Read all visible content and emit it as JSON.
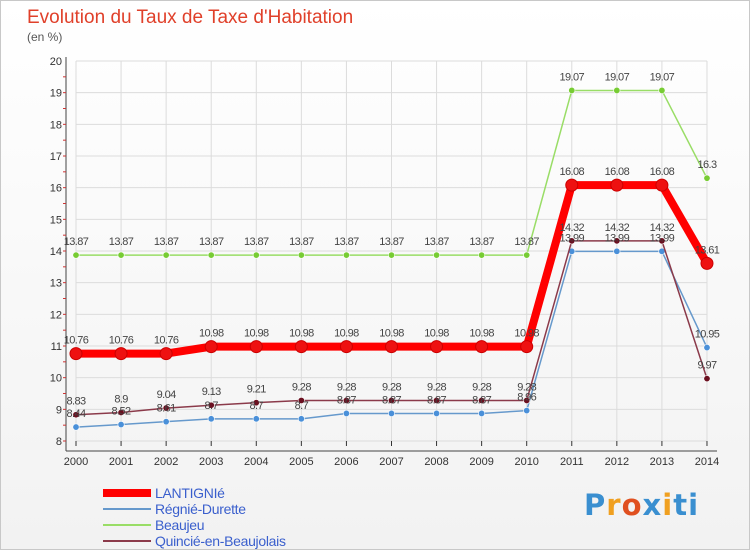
{
  "header": {
    "title": "Evolution du Taux de Taxe d'Habitation",
    "subtitle": "(en %)"
  },
  "chart_data": {
    "type": "line",
    "title": "Evolution du Taux de Taxe d'Habitation",
    "subtitle": "(en %)",
    "xlabel": "",
    "ylabel": "",
    "x": [
      "2000",
      "2001",
      "2002",
      "2003",
      "2004",
      "2005",
      "2006",
      "2007",
      "2008",
      "2009",
      "2010",
      "2011",
      "2012",
      "2013",
      "2014"
    ],
    "ylim": [
      8,
      20
    ],
    "yticks": [
      "8",
      "9",
      "10",
      "11",
      "12",
      "13",
      "14",
      "15",
      "16",
      "17",
      "18",
      "19",
      "20"
    ],
    "grid": true,
    "legend_position": "bottom-left",
    "series": [
      {
        "name": "LANTIGNIé",
        "color": "#ff0000",
        "marker_color": "#ee1111",
        "values": [
          10.76,
          10.76,
          10.76,
          10.98,
          10.98,
          10.98,
          10.98,
          10.98,
          10.98,
          10.98,
          10.98,
          16.08,
          16.08,
          16.08,
          13.61
        ],
        "labels": [
          "10.76",
          "10.76",
          "10.76",
          "10.98",
          "10.98",
          "10.98",
          "10.98",
          "10.98",
          "10.98",
          "10.98",
          "10.98",
          "16.08",
          "16.08",
          "16.08",
          "13.61"
        ]
      },
      {
        "name": "Régnié-Durette",
        "color": "#6699cc",
        "marker_color": "#4a90d9",
        "values": [
          8.44,
          8.52,
          8.61,
          8.7,
          8.7,
          8.7,
          8.87,
          8.87,
          8.87,
          8.87,
          8.96,
          13.99,
          13.99,
          13.99,
          10.95
        ],
        "labels": [
          "8.44",
          "8.52",
          "8.61",
          "8.7",
          "8.7",
          "8.7",
          "8.87",
          "8.87",
          "8.87",
          "8.87",
          "8.96",
          "13.99",
          "13.99",
          "13.99",
          "10.95"
        ]
      },
      {
        "name": "Beaujeu",
        "color": "#99dd66",
        "marker_color": "#77cc33",
        "values": [
          13.87,
          13.87,
          13.87,
          13.87,
          13.87,
          13.87,
          13.87,
          13.87,
          13.87,
          13.87,
          13.87,
          19.07,
          19.07,
          19.07,
          16.3
        ],
        "labels": [
          "13.87",
          "13.87",
          "13.87",
          "13.87",
          "13.87",
          "13.87",
          "13.87",
          "13.87",
          "13.87",
          "13.87",
          "13.87",
          "19.07",
          "19.07",
          "19.07",
          "16.3"
        ]
      },
      {
        "name": "Quincié-en-Beaujolais",
        "color": "#8b3a4a",
        "marker_color": "#6b1020",
        "values": [
          8.83,
          8.9,
          9.04,
          9.13,
          9.21,
          9.28,
          9.28,
          9.28,
          9.28,
          9.28,
          9.28,
          14.32,
          14.32,
          14.32,
          9.97
        ],
        "labels": [
          "8.83",
          "8.9",
          "9.04",
          "9.13",
          "9.21",
          "9.28",
          "9.28",
          "9.28",
          "9.28",
          "9.28",
          "9.28",
          "14.32",
          "14.32",
          "14.32",
          "9.97"
        ]
      }
    ]
  },
  "legend": {
    "items": [
      {
        "label": "LANTIGNIé",
        "color": "#ff0000"
      },
      {
        "label": "Régnié-Durette",
        "color": "#6699cc"
      },
      {
        "label": "Beaujeu",
        "color": "#99dd66"
      },
      {
        "label": "Quincié-en-Beaujolais",
        "color": "#8b3a4a"
      }
    ]
  },
  "logo": {
    "letters": [
      "P",
      "r",
      "o",
      "x",
      "i",
      "t",
      "i"
    ],
    "colors": [
      "#3a8fd0",
      "#f0a020",
      "#e05020",
      "#3a8fd0",
      "#f0a020",
      "#3a8fd0",
      "#3a8fd0"
    ]
  }
}
